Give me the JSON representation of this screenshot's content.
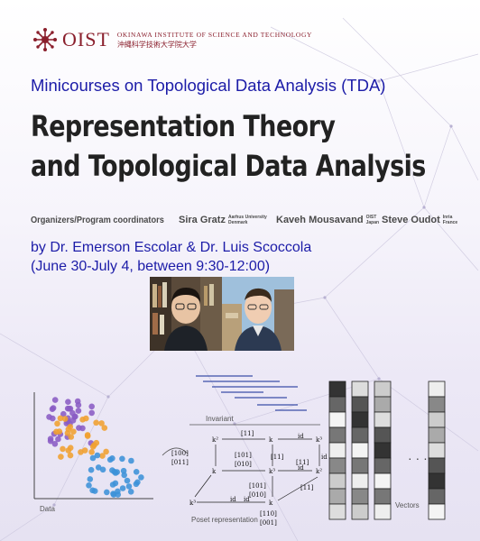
{
  "header": {
    "logo_word": "OIST",
    "logo_en": "OKINAWA INSTITUTE OF SCIENCE AND TECHNOLOGY",
    "logo_jp": "沖縄科学技術大学院大学"
  },
  "series_line": "Minicourses on Topological Data Analysis (TDA)",
  "title": {
    "line1": "Representation Theory",
    "line2": "and Topological Data Analysis"
  },
  "organizers": {
    "label": "Organizers/Program coordinators",
    "people": [
      {
        "name": "Sira Gratz",
        "aff1": "Aarhus University",
        "aff2": "Denmark"
      },
      {
        "name": "Kaveh Mousavand",
        "aff1": "OIST",
        "aff2": "Japan"
      },
      {
        "name": "Steve Oudot",
        "aff1": "Inria",
        "aff2": "France"
      }
    ]
  },
  "speakers_line": "by Dr. Emerson Escolar & Dr. Luis Scoccola",
  "schedule_line": "(June 30-July 4, between 9:30-12:00)",
  "figure": {
    "data_label": "Data",
    "invariant_label": "Invariant",
    "poset_label": "Poset representation",
    "vectors_label": "Vectors",
    "ellipsis": "· · ·",
    "matrices": [
      "[11]",
      "[100]",
      "[011]",
      "[101]",
      "[010]",
      "[11]",
      "[11]",
      "[101]",
      "[010]",
      "[11]",
      "[110]",
      "[001]"
    ],
    "nodes": [
      "k²",
      "k",
      "k³",
      "k",
      "k³",
      "k²",
      "k³",
      "k"
    ],
    "edge_labels": [
      "id",
      "id",
      "id",
      "id",
      "id"
    ],
    "colors": {
      "purple": "#8a5cc4",
      "orange": "#f0a030",
      "blue": "#3c92d8"
    }
  },
  "photos": [
    {
      "name": "photo-emerson-escolar"
    },
    {
      "name": "photo-luis-scoccola"
    }
  ]
}
